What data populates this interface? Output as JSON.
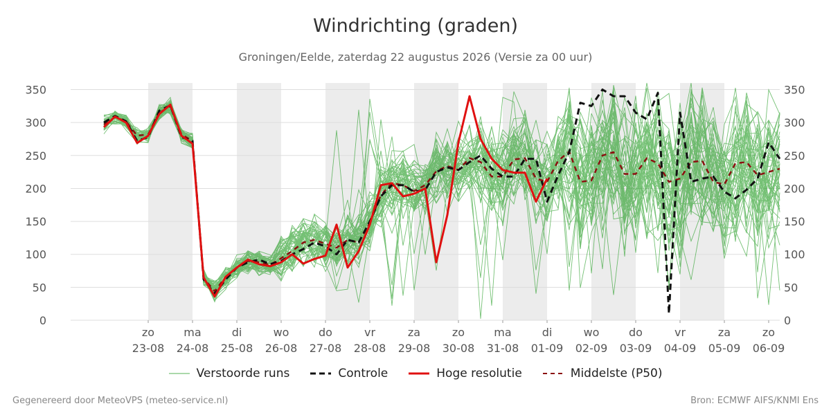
{
  "title": "Windrichting (graden)",
  "subtitle": "Groningen/Eelde, zaterdag 22 augustus 2026 (Versie za 00 uur)",
  "footer_left": "Gegenereerd door MeteoVPS (meteo-service.nl)",
  "footer_right": "Bron: ECMWF AIFS/KNMI Ens",
  "colors": {
    "ensemble": "#2ca02c",
    "control": "#111111",
    "hires": "#e01010",
    "median": "#8b1010",
    "night_band": "#ececec",
    "grid": "#dddddd"
  },
  "chart_data": {
    "type": "line",
    "x_unit": "hours since 2026-08-22 00:00",
    "xlim": [
      -18,
      366
    ],
    "ylim": [
      0,
      360
    ],
    "y_ticks": [
      0,
      50,
      100,
      150,
      200,
      250,
      300,
      350
    ],
    "grid": true,
    "legend_position": "bottom",
    "x_ticks": [
      {
        "x": 24,
        "day": "zo",
        "date": "23-08"
      },
      {
        "x": 48,
        "day": "ma",
        "date": "24-08"
      },
      {
        "x": 72,
        "day": "di",
        "date": "25-08"
      },
      {
        "x": 96,
        "day": "wo",
        "date": "26-08"
      },
      {
        "x": 120,
        "day": "do",
        "date": "27-08"
      },
      {
        "x": 144,
        "day": "vr",
        "date": "28-08"
      },
      {
        "x": 168,
        "day": "za",
        "date": "29-08"
      },
      {
        "x": 192,
        "day": "zo",
        "date": "30-08"
      },
      {
        "x": 216,
        "day": "ma",
        "date": "31-08"
      },
      {
        "x": 240,
        "day": "di",
        "date": "01-09"
      },
      {
        "x": 264,
        "day": "wo",
        "date": "02-09"
      },
      {
        "x": 288,
        "day": "do",
        "date": "03-09"
      },
      {
        "x": 312,
        "day": "vr",
        "date": "04-09"
      },
      {
        "x": 336,
        "day": "za",
        "date": "05-09"
      },
      {
        "x": 360,
        "day": "zo",
        "date": "06-09"
      }
    ],
    "shaded_days": [
      [
        24,
        48
      ],
      [
        72,
        96
      ],
      [
        120,
        144
      ],
      [
        168,
        192
      ],
      [
        216,
        240
      ],
      [
        264,
        288
      ],
      [
        312,
        336
      ]
    ],
    "legend": [
      "Verstoorde runs",
      "Controle",
      "Hoge resolutie",
      "Middelste (P50)"
    ],
    "series": [
      {
        "name": "Controle",
        "style": "dashed",
        "x": [
          0,
          6,
          12,
          18,
          24,
          30,
          36,
          42,
          48,
          54,
          60,
          66,
          72,
          78,
          84,
          90,
          96,
          102,
          108,
          114,
          120,
          126,
          132,
          138,
          144,
          150,
          156,
          162,
          168,
          174,
          180,
          186,
          192,
          198,
          204,
          210,
          216,
          222,
          228,
          234,
          240,
          246,
          252,
          258,
          264,
          270,
          276,
          282,
          288,
          294,
          300,
          306,
          312,
          318,
          324,
          330,
          336,
          342,
          348,
          354,
          360,
          366
        ],
        "y": [
          300,
          310,
          302,
          272,
          278,
          318,
          326,
          278,
          272,
          62,
          40,
          62,
          80,
          88,
          92,
          85,
          90,
          100,
          108,
          118,
          112,
          100,
          122,
          118,
          150,
          188,
          205,
          205,
          195,
          198,
          225,
          232,
          228,
          240,
          250,
          230,
          218,
          218,
          245,
          245,
          180,
          220,
          255,
          330,
          325,
          350,
          340,
          340,
          315,
          305,
          345,
          10,
          315,
          210,
          215,
          218,
          195,
          185,
          198,
          215,
          270,
          245
        ]
      },
      {
        "name": "Hoge resolutie",
        "style": "solid",
        "x": [
          0,
          6,
          12,
          18,
          24,
          30,
          36,
          42,
          48,
          54,
          60,
          66,
          72,
          78,
          84,
          90,
          96,
          102,
          108,
          114,
          120,
          126,
          132,
          138,
          144,
          150,
          156,
          162,
          168,
          174,
          180,
          186,
          192,
          198,
          204,
          210,
          216,
          222,
          228,
          234,
          240
        ],
        "y": [
          293,
          309,
          300,
          269,
          280,
          313,
          327,
          280,
          268,
          65,
          36,
          66,
          80,
          92,
          85,
          82,
          88,
          100,
          86,
          93,
          98,
          145,
          80,
          105,
          145,
          205,
          208,
          188,
          192,
          200,
          88,
          160,
          270,
          340,
          275,
          245,
          228,
          224,
          224,
          180,
          215
        ]
      },
      {
        "name": "Middelste (P50)",
        "style": "dashed",
        "x": [
          0,
          6,
          12,
          18,
          24,
          30,
          36,
          42,
          48,
          54,
          60,
          66,
          72,
          78,
          84,
          90,
          96,
          102,
          108,
          114,
          120,
          126,
          132,
          138,
          144,
          150,
          156,
          162,
          168,
          174,
          180,
          186,
          192,
          198,
          204,
          210,
          216,
          222,
          228,
          234,
          240,
          246,
          252,
          258,
          264,
          270,
          276,
          282,
          288,
          294,
          300,
          306,
          312,
          318,
          324,
          330,
          336,
          342,
          348,
          354,
          360,
          366
        ],
        "y": [
          297,
          308,
          302,
          280,
          282,
          315,
          325,
          282,
          272,
          64,
          44,
          66,
          80,
          90,
          88,
          84,
          94,
          105,
          118,
          122,
          116,
          110,
          122,
          118,
          148,
          190,
          208,
          205,
          196,
          205,
          226,
          234,
          228,
          246,
          240,
          218,
          218,
          244,
          246,
          215,
          210,
          242,
          256,
          210,
          212,
          250,
          255,
          222,
          222,
          246,
          238,
          210,
          215,
          240,
          242,
          210,
          206,
          238,
          240,
          220,
          225,
          230
        ]
      }
    ]
  }
}
